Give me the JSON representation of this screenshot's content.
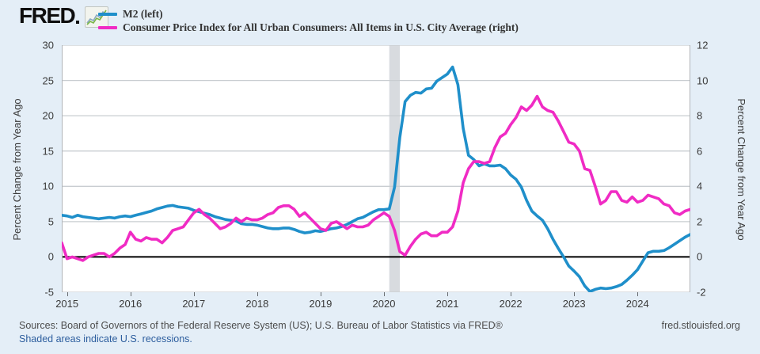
{
  "header": {
    "logo_text": "FRED",
    "legend": [
      {
        "label": "M2 (left)",
        "color": "#1f8fca"
      },
      {
        "label": "Consumer Price Index for All Urban Consumers: All Items in U.S. City Average (right)",
        "color": "#f02bc4"
      }
    ]
  },
  "colors": {
    "background": "#e4eef7",
    "plot_background": "#ffffff",
    "gridline": "#c9cdd1",
    "plot_border": "#b0b4b8",
    "zero_line": "#000000",
    "recession_band": "#d8dbdf",
    "m2_line": "#1f8fca",
    "cpi_line": "#f02bc4",
    "axis_text": "#3a3a3a",
    "footer_text": "#4d4d4d",
    "link": "#2d5e9e"
  },
  "chart_data": {
    "type": "line",
    "frequency": "monthly",
    "x_start": "2014-12",
    "x_end": "2024-11",
    "x_tick_labels": [
      "2015",
      "2016",
      "2017",
      "2018",
      "2019",
      "2020",
      "2021",
      "2022",
      "2023",
      "2024"
    ],
    "left_axis": {
      "label": "Percent Change from Year Ago",
      "min": -5,
      "max": 30,
      "ticks": [
        30,
        25,
        20,
        15,
        10,
        5,
        0,
        -5
      ]
    },
    "right_axis": {
      "label": "Percent Change from Year Ago",
      "min": -2,
      "max": 12,
      "ticks": [
        12,
        10,
        8,
        6,
        4,
        2,
        0,
        -2
      ]
    },
    "grid": true,
    "legend_position": "top-left",
    "recession_band": {
      "start": "2020-02",
      "end": "2020-04",
      "start_index": 62,
      "end_index": 64
    },
    "series": [
      {
        "name": "M2 (left)",
        "data_name": "m2-line",
        "axis": "left",
        "color": "#1f8fca",
        "values": [
          5.9,
          5.8,
          5.6,
          5.9,
          5.7,
          5.6,
          5.5,
          5.4,
          5.5,
          5.6,
          5.5,
          5.7,
          5.8,
          5.7,
          5.9,
          6.1,
          6.3,
          6.5,
          6.8,
          7.0,
          7.2,
          7.3,
          7.1,
          7.0,
          6.9,
          6.6,
          6.4,
          6.2,
          6.0,
          5.7,
          5.5,
          5.3,
          5.2,
          5.1,
          4.7,
          4.6,
          4.6,
          4.5,
          4.3,
          4.1,
          4.0,
          4.0,
          4.1,
          4.1,
          3.9,
          3.6,
          3.4,
          3.5,
          3.7,
          3.6,
          3.8,
          4.0,
          4.1,
          4.3,
          4.6,
          5.0,
          5.4,
          5.6,
          6.0,
          6.4,
          6.7,
          6.7,
          6.8,
          9.9,
          16.9,
          22.0,
          22.9,
          23.3,
          23.2,
          23.8,
          23.9,
          24.9,
          25.4,
          25.9,
          26.9,
          24.4,
          18.2,
          14.4,
          13.8,
          12.9,
          13.2,
          12.9,
          12.9,
          13.0,
          12.5,
          11.6,
          11.0,
          9.9,
          8.0,
          6.5,
          5.8,
          5.2,
          4.0,
          2.5,
          1.2,
          0.0,
          -1.3,
          -2.0,
          -2.8,
          -4.1,
          -4.9,
          -4.6,
          -4.4,
          -4.5,
          -4.4,
          -4.2,
          -3.9,
          -3.3,
          -2.6,
          -1.8,
          -0.6,
          0.6,
          0.8,
          0.8,
          0.9,
          1.3,
          1.8,
          2.3,
          2.8,
          3.2
        ]
      },
      {
        "name": "Consumer Price Index for All Urban Consumers: All Items in U.S. City Average (right)",
        "data_name": "cpi-line",
        "axis": "right",
        "color": "#f02bc4",
        "values": [
          0.8,
          -0.1,
          0.0,
          -0.1,
          -0.2,
          0.0,
          0.1,
          0.2,
          0.2,
          0.0,
          0.2,
          0.5,
          0.7,
          1.4,
          1.0,
          0.9,
          1.1,
          1.0,
          1.0,
          0.8,
          1.1,
          1.5,
          1.6,
          1.7,
          2.1,
          2.5,
          2.7,
          2.4,
          2.2,
          1.9,
          1.6,
          1.7,
          1.9,
          2.2,
          2.0,
          2.2,
          2.1,
          2.1,
          2.2,
          2.4,
          2.5,
          2.8,
          2.9,
          2.9,
          2.7,
          2.3,
          2.5,
          2.2,
          1.9,
          1.6,
          1.5,
          1.9,
          2.0,
          1.8,
          1.6,
          1.8,
          1.7,
          1.7,
          1.8,
          2.1,
          2.3,
          2.5,
          2.3,
          1.5,
          0.3,
          0.1,
          0.6,
          1.0,
          1.3,
          1.4,
          1.2,
          1.2,
          1.4,
          1.4,
          1.7,
          2.6,
          4.2,
          5.0,
          5.4,
          5.4,
          5.3,
          5.4,
          6.2,
          6.8,
          7.0,
          7.5,
          7.9,
          8.5,
          8.3,
          8.6,
          9.1,
          8.5,
          8.3,
          8.2,
          7.7,
          7.1,
          6.5,
          6.4,
          6.0,
          5.0,
          4.9,
          4.0,
          3.0,
          3.2,
          3.7,
          3.7,
          3.2,
          3.1,
          3.4,
          3.1,
          3.2,
          3.5,
          3.4,
          3.3,
          3.0,
          2.9,
          2.5,
          2.4,
          2.6,
          2.7
        ]
      }
    ]
  },
  "footer": {
    "sources": "Sources: Board of Governors of the Federal Reserve System (US); U.S. Bureau of Labor Statistics via FRED®",
    "recession_note": "Shaded areas indicate U.S. recessions.",
    "site": "fred.stlouisfed.org"
  }
}
